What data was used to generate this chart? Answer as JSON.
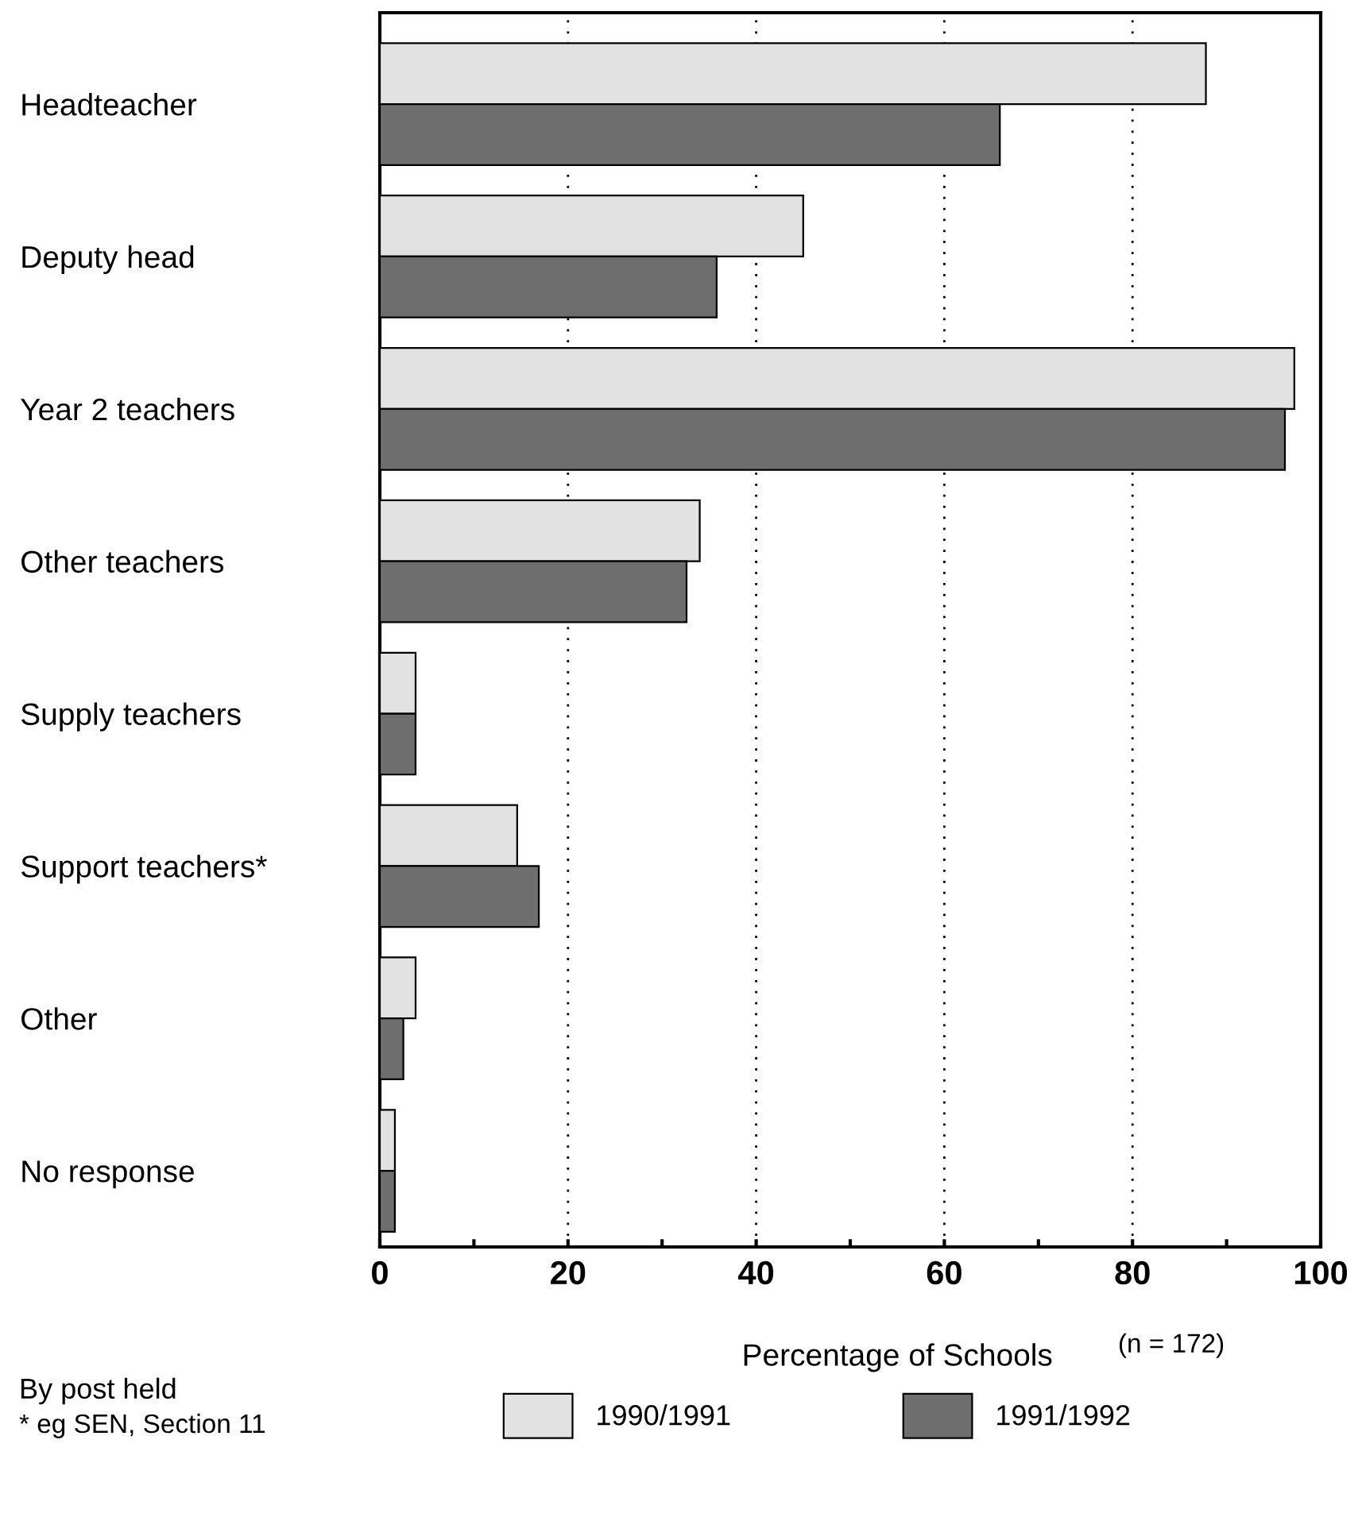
{
  "chart_data": {
    "type": "bar",
    "orientation": "horizontal",
    "categories": [
      "Headteacher",
      "Deputy head",
      "Year 2 teachers",
      "Other teachers",
      "Supply teachers",
      "Support teachers*",
      "Other",
      "No response"
    ],
    "series": [
      {
        "name": "1990/1991",
        "color": "#e2e2e2",
        "values": [
          87.8,
          45.0,
          97.2,
          34.0,
          3.8,
          14.6,
          3.8,
          1.6
        ]
      },
      {
        "name": "1991/1992",
        "color": "#6e6e6e",
        "values": [
          65.9,
          35.8,
          96.2,
          32.6,
          3.8,
          16.9,
          2.5,
          1.6
        ]
      }
    ],
    "xlabel": "Percentage of Schools",
    "xlim": [
      0,
      100
    ],
    "xticks": [
      0,
      {
        "value": 10,
        "label": null
      },
      20,
      {
        "value": 30,
        "label": null
      },
      40,
      {
        "value": 50,
        "label": null
      },
      60,
      {
        "value": 70,
        "label": null
      },
      80,
      {
        "value": 90,
        "label": null
      },
      100
    ],
    "grid": "x",
    "legend": "bottom",
    "annotations": [
      "(n = 172)",
      "By post held",
      "* eg SEN, Section 11"
    ]
  }
}
